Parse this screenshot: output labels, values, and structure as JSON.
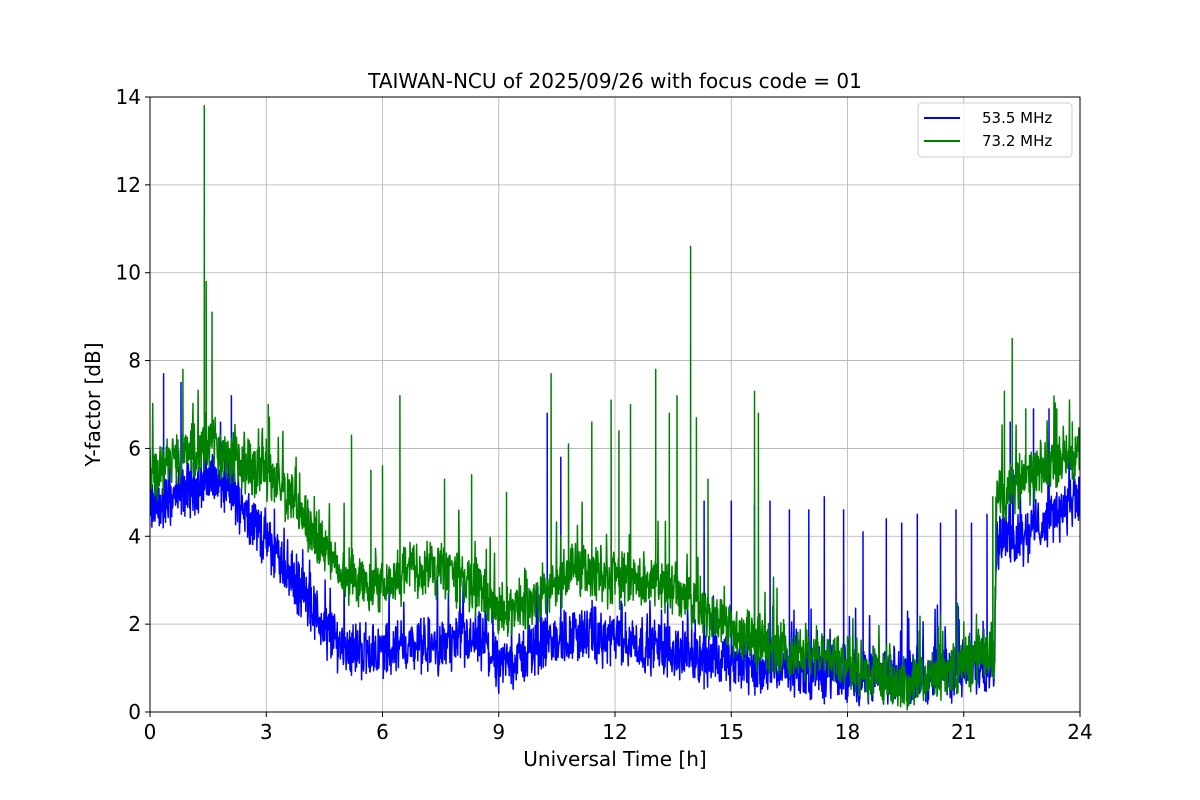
{
  "chart_data": {
    "type": "line",
    "title": "TAIWAN-NCU of 2025/09/26 with focus code = 01",
    "xlabel": "Universal Time [h]",
    "ylabel": "Y-factor [dB]",
    "xlim": [
      0,
      24
    ],
    "ylim": [
      0,
      14
    ],
    "xticks": [
      0,
      3,
      6,
      9,
      12,
      15,
      18,
      21,
      24
    ],
    "yticks": [
      0,
      2,
      4,
      6,
      8,
      10,
      12,
      14
    ],
    "xtick_labels": [
      "0",
      "3",
      "6",
      "9",
      "12",
      "15",
      "18",
      "21",
      "24"
    ],
    "ytick_labels": [
      "0",
      "2",
      "4",
      "6",
      "8",
      "10",
      "12",
      "14"
    ],
    "grid": true,
    "legend_position": "top-right",
    "series": [
      {
        "name": "53.5 MHz",
        "color": "#0000ff",
        "baseline": {
          "x": [
            0,
            0.5,
            1,
            1.5,
            2,
            2.5,
            3,
            3.5,
            4,
            4.5,
            5,
            5.5,
            6,
            6.5,
            7,
            7.5,
            8,
            8.5,
            9,
            9.5,
            10,
            10.5,
            11,
            11.5,
            12,
            12.5,
            13,
            13.5,
            14,
            14.5,
            15,
            15.5,
            16,
            16.5,
            17,
            17.5,
            18,
            18.5,
            19,
            19.5,
            20,
            20.5,
            21,
            21.5,
            21.8,
            21.85,
            22,
            22.5,
            23,
            23.5,
            24
          ],
          "y": [
            4.6,
            4.8,
            5.1,
            5.3,
            5.1,
            4.6,
            3.9,
            3.3,
            2.6,
            1.9,
            1.5,
            1.4,
            1.4,
            1.5,
            1.5,
            1.5,
            1.6,
            1.6,
            1.1,
            1.2,
            1.5,
            1.6,
            1.8,
            1.7,
            1.6,
            1.6,
            1.5,
            1.4,
            1.3,
            1.2,
            1.1,
            1.0,
            1.0,
            0.95,
            0.9,
            0.9,
            0.85,
            0.8,
            0.8,
            0.8,
            0.85,
            0.9,
            1.0,
            1.1,
            1.2,
            3.9,
            3.9,
            4.0,
            4.3,
            4.6,
            4.8
          ]
        },
        "peaks": [
          {
            "x": 0.35,
            "y": 7.7
          },
          {
            "x": 0.8,
            "y": 7.5
          },
          {
            "x": 2.1,
            "y": 7.2
          },
          {
            "x": 10.25,
            "y": 6.8
          },
          {
            "x": 10.6,
            "y": 5.8
          },
          {
            "x": 14.3,
            "y": 4.8
          },
          {
            "x": 15.0,
            "y": 4.8
          },
          {
            "x": 15.6,
            "y": 4.7
          },
          {
            "x": 16.0,
            "y": 4.8
          },
          {
            "x": 16.5,
            "y": 4.6
          },
          {
            "x": 17.0,
            "y": 4.6
          },
          {
            "x": 17.4,
            "y": 4.9
          },
          {
            "x": 17.9,
            "y": 4.6
          },
          {
            "x": 18.4,
            "y": 4.1
          },
          {
            "x": 19.0,
            "y": 4.4
          },
          {
            "x": 19.4,
            "y": 4.3
          },
          {
            "x": 19.8,
            "y": 4.5
          },
          {
            "x": 20.4,
            "y": 4.3
          },
          {
            "x": 20.8,
            "y": 4.6
          },
          {
            "x": 21.2,
            "y": 4.3
          },
          {
            "x": 21.6,
            "y": 4.5
          },
          {
            "x": 22.2,
            "y": 6.6
          },
          {
            "x": 22.8,
            "y": 6.9
          },
          {
            "x": 23.2,
            "y": 6.9
          }
        ]
      },
      {
        "name": "73.2 MHz",
        "color": "#008000",
        "baseline": {
          "x": [
            0,
            0.5,
            1,
            1.5,
            2,
            2.5,
            3,
            3.5,
            4,
            4.5,
            5,
            5.5,
            6,
            6.5,
            7,
            7.5,
            8,
            8.5,
            9,
            9.5,
            10,
            10.5,
            11,
            11.5,
            12,
            12.5,
            13,
            13.5,
            14,
            14.5,
            15,
            15.5,
            16,
            16.5,
            17,
            17.5,
            18,
            18.5,
            19,
            19.5,
            20,
            20.5,
            21,
            21.5,
            21.8,
            21.85,
            22,
            22.5,
            23,
            23.5,
            24
          ],
          "y": [
            5.4,
            5.7,
            5.9,
            6.2,
            5.8,
            5.6,
            5.5,
            5.0,
            4.3,
            3.8,
            3.2,
            2.9,
            3.0,
            3.1,
            3.3,
            3.3,
            3.0,
            2.8,
            2.2,
            2.4,
            2.6,
            2.9,
            3.3,
            3.1,
            3.0,
            3.0,
            2.9,
            2.8,
            2.6,
            2.2,
            1.9,
            1.7,
            1.5,
            1.4,
            1.3,
            1.2,
            1.1,
            0.9,
            0.7,
            0.6,
            0.7,
            0.9,
            1.1,
            1.3,
            1.4,
            5.0,
            5.0,
            5.2,
            5.5,
            5.8,
            6.0
          ]
        },
        "peaks": [
          {
            "x": 0.85,
            "y": 7.8
          },
          {
            "x": 1.4,
            "y": 13.8
          },
          {
            "x": 1.45,
            "y": 9.8
          },
          {
            "x": 1.6,
            "y": 9.1
          },
          {
            "x": 3.05,
            "y": 7.0
          },
          {
            "x": 5.2,
            "y": 6.3
          },
          {
            "x": 5.7,
            "y": 5.5
          },
          {
            "x": 6.0,
            "y": 5.6
          },
          {
            "x": 6.45,
            "y": 7.2
          },
          {
            "x": 7.6,
            "y": 5.3
          },
          {
            "x": 8.3,
            "y": 5.4
          },
          {
            "x": 9.2,
            "y": 5.0
          },
          {
            "x": 10.35,
            "y": 7.7
          },
          {
            "x": 10.8,
            "y": 6.1
          },
          {
            "x": 11.4,
            "y": 6.6
          },
          {
            "x": 11.9,
            "y": 7.1
          },
          {
            "x": 12.1,
            "y": 6.4
          },
          {
            "x": 12.4,
            "y": 7.0
          },
          {
            "x": 13.05,
            "y": 7.8
          },
          {
            "x": 13.4,
            "y": 6.8
          },
          {
            "x": 13.6,
            "y": 7.2
          },
          {
            "x": 13.95,
            "y": 10.6
          },
          {
            "x": 14.1,
            "y": 6.7
          },
          {
            "x": 14.4,
            "y": 5.3
          },
          {
            "x": 15.6,
            "y": 7.3
          },
          {
            "x": 15.7,
            "y": 6.8
          },
          {
            "x": 21.75,
            "y": 4.9
          },
          {
            "x": 22.05,
            "y": 7.3
          },
          {
            "x": 22.25,
            "y": 8.5
          },
          {
            "x": 22.6,
            "y": 6.9
          },
          {
            "x": 23.4,
            "y": 6.9
          },
          {
            "x": 23.8,
            "y": 6.6
          }
        ]
      }
    ]
  }
}
